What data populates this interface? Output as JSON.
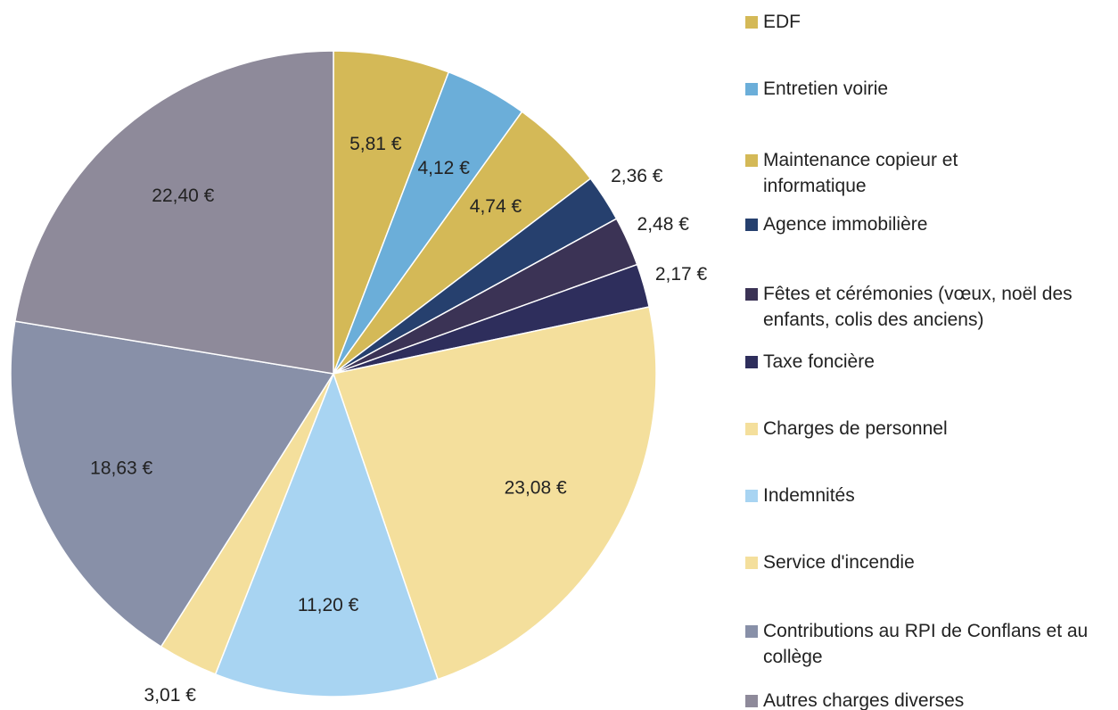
{
  "chart_data": {
    "type": "pie",
    "categories": [
      "EDF",
      "Entretien voirie",
      "Maintenance copieur et informatique",
      "Agence immobilière",
      "Fêtes et cérémonies (vœux, noël des enfants, colis des anciens)",
      "Taxe foncière",
      "Charges de personnel",
      "Indemnités",
      "Service d'incendie",
      "Contributions au RPI de Conflans et au collège",
      "Autres charges diverses"
    ],
    "values": [
      5.81,
      4.12,
      4.74,
      2.36,
      2.48,
      2.17,
      23.08,
      11.2,
      3.01,
      18.63,
      22.4
    ],
    "value_labels": [
      "5,81 €",
      "4,12 €",
      "4,74 €",
      "2,36 €",
      "2,48 €",
      "2,17 €",
      "23,08 €",
      "11,20 €",
      "3,01 €",
      "18,63 €",
      "22,40 €"
    ],
    "colors": [
      "#d4b957",
      "#6baed9",
      "#d4b957",
      "#26406e",
      "#3b3355",
      "#2e2e5c",
      "#f4df9c",
      "#a8d4f2",
      "#f4df9c",
      "#8890a8",
      "#8e8a9a"
    ],
    "legend": "right"
  }
}
